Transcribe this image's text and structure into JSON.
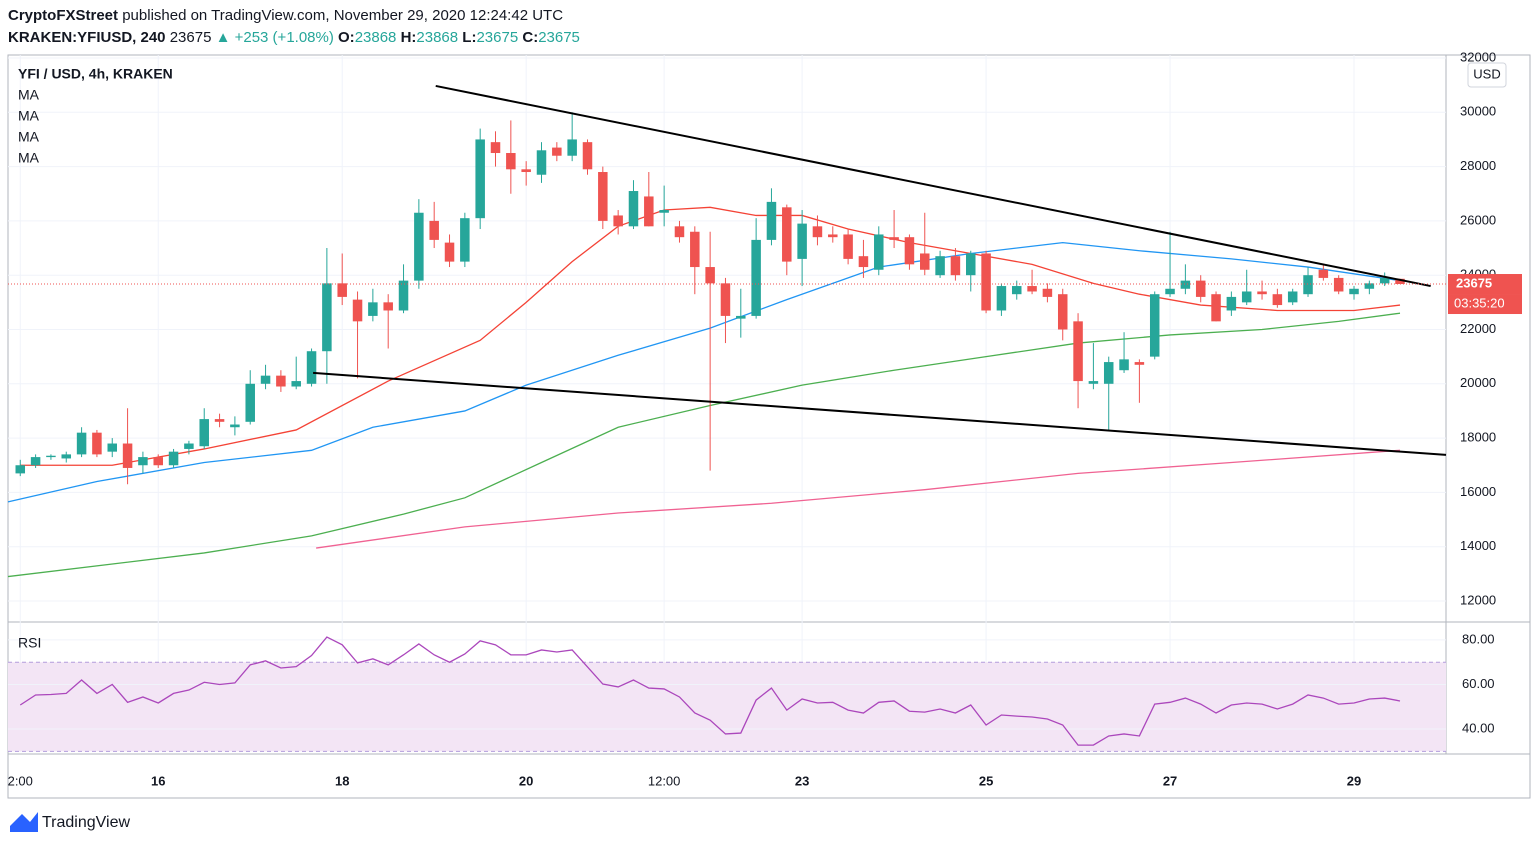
{
  "header": {
    "publisher": "CryptoFXStreet",
    "published": "published on TradingView.com, November 29, 2020 12:24:42 UTC",
    "symbol": "KRAKEN:YFIUSD, 240",
    "last": "23675",
    "change": "▲ +253 (+1.08%)",
    "ohlc": [
      {
        "label": "O:",
        "value": "23868"
      },
      {
        "label": "H:",
        "value": "23868"
      },
      {
        "label": "L:",
        "value": "23675"
      },
      {
        "label": "C:",
        "value": "23675"
      }
    ]
  },
  "chart_data": [
    {
      "type": "candlestick",
      "title": "YFI / USD, 4h, KRAKEN",
      "axis_label": "USD",
      "up_color": "#26a69a",
      "down_color": "#ef5350",
      "grid": true,
      "x": [
        0,
        1,
        2,
        3,
        4,
        5,
        6,
        7,
        8,
        9,
        10,
        11,
        12,
        13,
        14,
        15,
        16,
        17,
        18,
        19,
        20,
        21,
        22,
        23,
        24,
        25,
        26,
        27,
        28,
        29,
        30,
        31,
        32,
        33,
        34,
        35,
        36,
        37,
        38,
        39,
        40,
        41,
        42,
        43,
        44,
        45,
        46,
        47,
        48,
        49,
        50,
        51,
        52,
        53,
        54,
        55,
        56,
        57,
        58,
        59,
        60,
        61,
        62,
        63,
        64,
        65,
        66,
        67,
        68,
        69,
        70,
        71,
        72,
        73,
        74,
        75,
        76,
        77,
        78,
        79,
        80,
        81,
        82,
        83,
        84,
        85,
        86,
        87,
        88,
        89,
        90
      ],
      "open": [
        16700,
        17000,
        17300,
        17250,
        17400,
        18200,
        17500,
        17800,
        17000,
        17300,
        17000,
        17600,
        17700,
        18700,
        18400,
        18600,
        20000,
        20300,
        19900,
        20000,
        21200,
        23700,
        23100,
        22500,
        23000,
        22700,
        23800,
        26000,
        25200,
        24500,
        26100,
        28900,
        28500,
        27900,
        27700,
        28700,
        28400,
        28900,
        27800,
        26200,
        25800,
        26900,
        26300,
        25800,
        25600,
        24300,
        23700,
        22400,
        22500,
        25300,
        26500,
        24600,
        25800,
        25500,
        25500,
        24700,
        24200,
        25400,
        25400,
        24800,
        24000,
        24700,
        24000,
        24800,
        22700,
        23300,
        23600,
        23500,
        23300,
        22300,
        20000,
        20000,
        20500,
        20800,
        21000,
        23300,
        23500,
        23800,
        23300,
        22700,
        23000,
        23400,
        23300,
        23000,
        23300,
        24200,
        23900,
        23300,
        23500,
        23700,
        23868
      ],
      "high": [
        17200,
        17400,
        17400,
        17500,
        18400,
        18300,
        18000,
        19100,
        17500,
        17400,
        17600,
        17900,
        19100,
        18900,
        18800,
        20500,
        20700,
        20500,
        21000,
        21300,
        25000,
        24800,
        23400,
        23500,
        23300,
        24400,
        26800,
        26700,
        25500,
        26300,
        29400,
        29300,
        29700,
        28200,
        28900,
        28900,
        30000,
        29000,
        28000,
        26400,
        27500,
        27800,
        27300,
        26000,
        25800,
        25600,
        23900,
        23500,
        26100,
        27200,
        26600,
        26400,
        26200,
        25800,
        25700,
        25300,
        25800,
        26400,
        25500,
        26300,
        24900,
        25000,
        24900,
        24900,
        23700,
        23800,
        24200,
        23700,
        23500,
        22600,
        21500,
        21000,
        21900,
        20900,
        23400,
        25600,
        24400,
        24000,
        23400,
        23400,
        24200,
        23800,
        23500,
        23500,
        24300,
        24400,
        24000,
        23600,
        23800,
        24100,
        23868
      ],
      "low": [
        16600,
        16900,
        17200,
        17100,
        17300,
        17300,
        17300,
        16300,
        16700,
        16900,
        16900,
        17400,
        17600,
        18400,
        18100,
        18500,
        19800,
        19700,
        19800,
        19900,
        20000,
        22900,
        20200,
        22300,
        21300,
        22600,
        23500,
        25000,
        24300,
        24300,
        25700,
        28000,
        27000,
        27300,
        27400,
        28200,
        28200,
        27700,
        25700,
        25500,
        25700,
        25800,
        25800,
        25200,
        23300,
        16800,
        21500,
        21700,
        22400,
        25100,
        24000,
        23600,
        25100,
        25200,
        24400,
        23900,
        24000,
        25000,
        24200,
        24000,
        23900,
        23800,
        23400,
        22600,
        22500,
        23100,
        23300,
        23000,
        21600,
        19100,
        19800,
        18300,
        20400,
        19300,
        20900,
        23200,
        23300,
        23000,
        22300,
        22500,
        22900,
        23100,
        22800,
        22900,
        23200,
        23800,
        23300,
        23100,
        23300,
        23600,
        23675
      ],
      "close": [
        17000,
        17300,
        17350,
        17400,
        18200,
        17400,
        17800,
        16900,
        17300,
        17000,
        17500,
        17800,
        18700,
        18600,
        18500,
        20000,
        20300,
        19900,
        20100,
        21200,
        23700,
        23200,
        22300,
        23000,
        22700,
        23800,
        26300,
        25300,
        24500,
        26100,
        29000,
        28500,
        27900,
        27800,
        28600,
        28400,
        29000,
        27900,
        26000,
        25800,
        27100,
        25800,
        26400,
        25400,
        24300,
        23700,
        22500,
        22500,
        25300,
        26700,
        24500,
        25900,
        25400,
        25400,
        24600,
        24300,
        25500,
        25300,
        24400,
        24200,
        24700,
        24000,
        24800,
        22700,
        23600,
        23600,
        23400,
        23200,
        22000,
        20100,
        20100,
        20800,
        20900,
        20700,
        23300,
        23500,
        23800,
        23200,
        22300,
        23200,
        23400,
        23300,
        22900,
        23400,
        24000,
        23900,
        23400,
        23500,
        23700,
        23900,
        23675
      ],
      "series": [
        {
          "name": "MA",
          "color": "#f44336",
          "x": [
            0,
            6,
            12,
            18,
            24,
            30,
            33,
            36,
            39,
            42,
            45,
            48,
            51,
            54,
            58,
            62,
            66,
            70,
            73,
            77,
            82,
            87,
            90
          ],
          "values": [
            17000,
            17000,
            17600,
            18300,
            20100,
            21600,
            23000,
            24500,
            25800,
            26400,
            26500,
            26200,
            26200,
            25700,
            25200,
            24800,
            24400,
            23700,
            23300,
            22900,
            22700,
            22700,
            22900
          ]
        },
        {
          "name": "MA",
          "color": "#2196f3",
          "x": [
            -0.8,
            5,
            12,
            19,
            23,
            29,
            33,
            39,
            45,
            50,
            56,
            62,
            68,
            73,
            79,
            84,
            90
          ],
          "values": [
            15650,
            16400,
            17100,
            17550,
            18400,
            19000,
            19950,
            21050,
            22050,
            23100,
            24300,
            24800,
            25200,
            24900,
            24600,
            24300,
            23800
          ]
        },
        {
          "name": "MA",
          "color": "#4caf50",
          "x": [
            -0.8,
            12,
            19,
            25,
            29,
            34,
            39,
            45,
            51,
            57,
            63,
            69,
            75,
            81,
            86,
            90
          ],
          "values": [
            12900,
            13770,
            14400,
            15200,
            15800,
            17100,
            18400,
            19200,
            19950,
            20500,
            21000,
            21500,
            21800,
            22000,
            22300,
            22600
          ]
        },
        {
          "name": "MA",
          "color": "#f06292",
          "x": [
            19.3,
            29,
            39,
            49,
            59,
            69,
            79,
            90
          ],
          "values": [
            13950,
            14730,
            15240,
            15600,
            16100,
            16700,
            17100,
            17550
          ]
        }
      ],
      "trendlines": [
        {
          "x": [
            27.1,
            92
          ],
          "y": [
            30970,
            23600
          ]
        },
        {
          "x": [
            19.1,
            93
          ],
          "y": [
            20400,
            17380
          ]
        }
      ],
      "last_price": 23675,
      "countdown": "03:35:20",
      "xlim": [
        -0.8,
        93
      ],
      "ylim": [
        11300,
        32110
      ],
      "yticks": [
        12000,
        14000,
        16000,
        18000,
        20000,
        22000,
        24000,
        26000,
        28000,
        30000,
        32000
      ],
      "xticks": [
        {
          "value": 0,
          "label": "2:00"
        },
        {
          "value": 9,
          "label": "16"
        },
        {
          "value": 21,
          "label": "18"
        },
        {
          "value": 33,
          "label": "20"
        },
        {
          "value": 42,
          "label": "12:00"
        },
        {
          "value": 51,
          "label": "23"
        },
        {
          "value": 63,
          "label": "25"
        },
        {
          "value": 75,
          "label": "27"
        },
        {
          "value": 87,
          "label": "29"
        }
      ]
    },
    {
      "type": "line",
      "title": "RSI",
      "color": "#ab47bc",
      "band": [
        30,
        70
      ],
      "values": [
        50.8,
        55.3,
        55.5,
        56,
        62,
        56,
        60,
        52,
        54.4,
        51.7,
        56,
        57.5,
        61,
        60,
        60.7,
        68.8,
        70.6,
        67.4,
        68,
        73,
        81.3,
        77.8,
        69.7,
        71.5,
        68.8,
        73.3,
        78.2,
        73.3,
        70,
        73.7,
        79.6,
        77.8,
        73.3,
        73.3,
        75.5,
        74.6,
        75.5,
        67.9,
        60.2,
        58.9,
        62,
        58.4,
        58,
        54.4,
        47.2,
        44,
        37.8,
        38.2,
        53,
        58.4,
        48.5,
        53.5,
        51.7,
        52,
        48.5,
        47.2,
        52,
        52.6,
        48,
        47.6,
        49,
        47.2,
        50.8,
        41.8,
        46.3,
        45.8,
        45.4,
        44.5,
        41.8,
        32.8,
        32.8,
        36.9,
        37.8,
        36.9,
        51.2,
        52,
        53.9,
        51.2,
        47.2,
        50.8,
        51.7,
        51.2,
        49,
        51.2,
        55.3,
        53.9,
        51.2,
        51.7,
        53.5,
        53.9,
        52.6
      ],
      "ylim": [
        29.7,
        86.7
      ],
      "yticks": [
        {
          "value": 40,
          "label": "40.00"
        },
        {
          "value": 60,
          "label": "60.00"
        },
        {
          "value": 80,
          "label": "80.00"
        }
      ]
    }
  ],
  "footer": {
    "brand": "TradingView"
  }
}
